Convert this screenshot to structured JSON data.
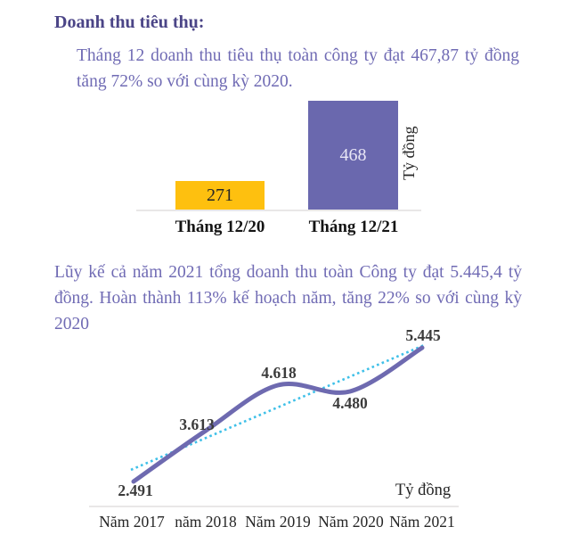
{
  "report": {
    "heading": "Doanh thu tiêu thụ:",
    "monthly_summary": "Tháng 12 doanh thu tiêu thụ toàn công ty đạt 467,87 tỷ đồng tăng 72% so với cùng kỳ 2020.",
    "annual_summary": "Lũy kế cả năm 2021 tổng doanh thu toàn Công ty đạt 5.445,4 tỷ đồng. Hoàn thành 113% kế hoạch năm, tăng 22% so với cùng kỳ 2020"
  },
  "colors": {
    "heading_color": "#4b4587",
    "body_color": "#706bb4",
    "bar_orange": "#fec00f",
    "bar_purple": "#6a68ae",
    "line_purple": "#6e6ab0",
    "trend_cyan": "#3fc0e8",
    "value_label_color": "#3b3b3b",
    "axis_label_color": "#262626",
    "bar_xlabel_color": "#141414",
    "baseline_color": "#e9e7e7"
  },
  "chart_data": [
    {
      "type": "bar",
      "title": "",
      "categories": [
        "Tháng 12/20",
        "Tháng 12/21"
      ],
      "values": [
        271,
        468
      ],
      "data_labels": [
        "271",
        "468"
      ],
      "unit_label": "Tỷ đồng",
      "bar_colors": [
        "#fec00f",
        "#6a68ae"
      ],
      "ylim": [
        200,
        468
      ],
      "grid": false,
      "legend": false
    },
    {
      "type": "line",
      "title": "",
      "categories": [
        "Năm 2017",
        "năm 2018",
        "Năm 2019",
        "Năm 2020",
        "Năm 2021"
      ],
      "series": [
        {
          "name": "Doanh thu toàn Công ty",
          "values": [
            2491,
            3613,
            4618,
            4480,
            5445
          ]
        }
      ],
      "data_labels": [
        "2.491",
        "3.613",
        "4.618",
        "4.480",
        "5.445"
      ],
      "unit_label": "Tỷ đồng",
      "line_color": "#6e6ab0",
      "trendline": {
        "show": true,
        "style": "dotted",
        "color": "#3fc0e8"
      },
      "grid": false,
      "legend": false
    }
  ]
}
